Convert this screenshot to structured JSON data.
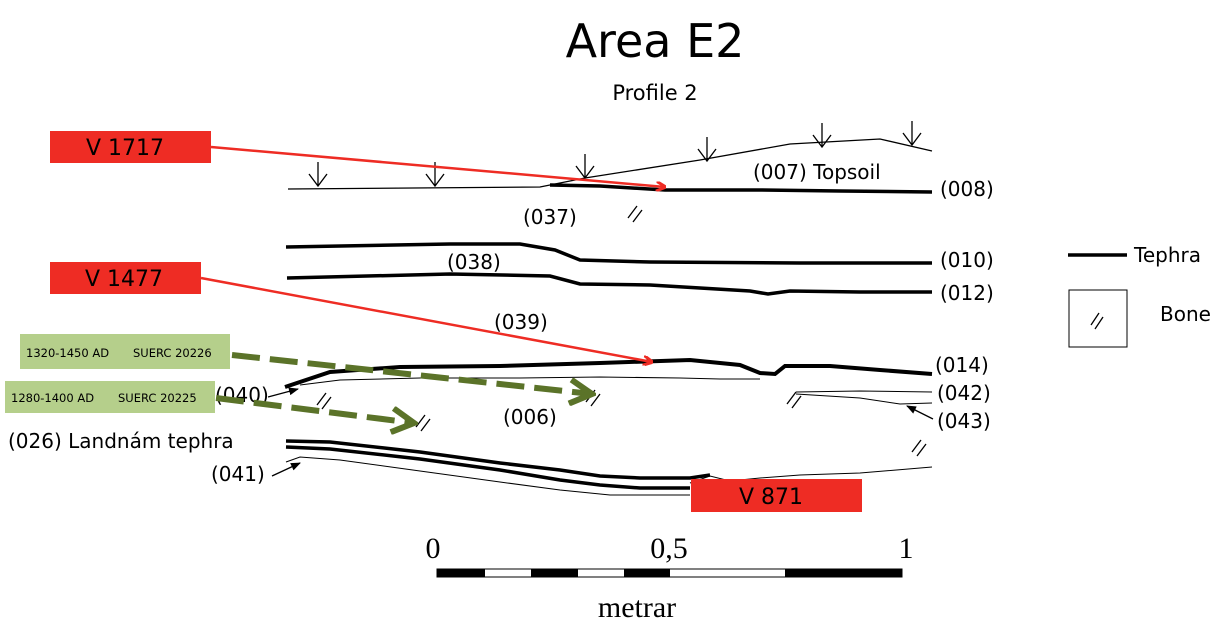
{
  "title": "Area E2",
  "subtitle": "Profile 2",
  "labels": {
    "topsoil": "(007) Topsoil",
    "c008": "(008)",
    "c037": "(037)",
    "c038": "(038)",
    "c010": "(010)",
    "c012": "(012)",
    "c039": "(039)",
    "c014": "(014)",
    "c040": "(040)",
    "c042": "(042)",
    "c043": "(043)",
    "c006": "(006)",
    "landnam": "(026) Landnám tephra",
    "c041": "(041)"
  },
  "samples": {
    "v1717": "V 1717",
    "v1477": "V 1477",
    "v871": "V 871"
  },
  "dates": {
    "d1_range": "1320-1450 AD",
    "d1_lab": "SUERC 20226",
    "d2_range": "1280-1400 AD",
    "d2_lab": "SUERC 20225"
  },
  "legend": {
    "tephra": "Tephra",
    "bone": "Bone"
  },
  "scale": {
    "tick0": "0",
    "tick_mid": "0,5",
    "tick1": "1",
    "unit": "metrar"
  },
  "colors": {
    "sample_red": "#ee2c24",
    "date_green_bg": "#b5cf8b",
    "dashed_arrow": "#5b7329",
    "line": "#000000"
  }
}
